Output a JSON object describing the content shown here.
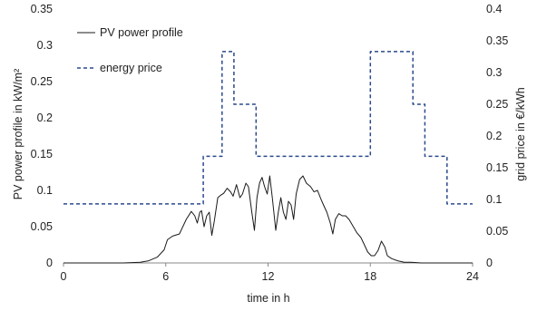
{
  "chart_data": {
    "type": "line",
    "xlabel": "time in h",
    "ylabel_left": "PV power profile in kW/m²",
    "ylabel_right": "grid price in €/kWh",
    "xlim": [
      0,
      24
    ],
    "ylim_left": [
      0,
      0.35
    ],
    "ylim_right": [
      0,
      0.4
    ],
    "x_ticks": [
      "0",
      "6",
      "12",
      "18",
      "24"
    ],
    "y_left_ticks": [
      "0",
      "0.05",
      "0.1",
      "0.15",
      "0.2",
      "0.25",
      "0.3",
      "0.35"
    ],
    "y_right_ticks": [
      "0",
      "0.05",
      "0.1",
      "0.15",
      "0.2",
      "0.25",
      "0.3",
      "0.35",
      "0.4"
    ],
    "grid": false,
    "legend_position": "top-left",
    "colors": {
      "pv": "#1a1a1a",
      "price": "#2b4a8c",
      "axis": "#888888"
    },
    "series": [
      {
        "name": "PV power profile",
        "axis": "left",
        "style": "solid",
        "x": [
          0,
          3.5,
          4.5,
          5,
          5.5,
          5.9,
          6.1,
          6.4,
          6.8,
          7.2,
          7.5,
          7.7,
          7.85,
          8.0,
          8.1,
          8.25,
          8.4,
          8.55,
          8.7,
          8.85,
          9.05,
          9.2,
          9.4,
          9.6,
          9.8,
          9.95,
          10.15,
          10.35,
          10.5,
          10.7,
          10.85,
          11.05,
          11.2,
          11.35,
          11.5,
          11.65,
          11.8,
          11.95,
          12.1,
          12.25,
          12.45,
          12.6,
          12.75,
          12.9,
          13.05,
          13.2,
          13.35,
          13.5,
          13.65,
          13.85,
          14.05,
          14.25,
          14.5,
          14.7,
          14.9,
          15.1,
          15.25,
          15.45,
          15.65,
          15.8,
          15.95,
          16.15,
          16.35,
          16.55,
          16.75,
          17.0,
          17.2,
          17.45,
          17.65,
          17.85,
          18.05,
          18.25,
          18.45,
          18.65,
          18.85,
          19.0,
          19.25,
          19.6,
          20.0,
          20.4,
          21.0,
          24
        ],
        "y": [
          0,
          0,
          0.001,
          0.003,
          0.008,
          0.018,
          0.032,
          0.037,
          0.04,
          0.06,
          0.071,
          0.065,
          0.055,
          0.07,
          0.072,
          0.05,
          0.065,
          0.07,
          0.038,
          0.058,
          0.09,
          0.093,
          0.096,
          0.103,
          0.098,
          0.092,
          0.108,
          0.09,
          0.095,
          0.11,
          0.105,
          0.07,
          0.045,
          0.09,
          0.11,
          0.118,
          0.105,
          0.095,
          0.12,
          0.09,
          0.045,
          0.07,
          0.09,
          0.07,
          0.06,
          0.085,
          0.08,
          0.06,
          0.095,
          0.115,
          0.12,
          0.11,
          0.105,
          0.098,
          0.1,
          0.088,
          0.08,
          0.07,
          0.055,
          0.04,
          0.06,
          0.068,
          0.065,
          0.065,
          0.06,
          0.05,
          0.042,
          0.035,
          0.025,
          0.015,
          0.01,
          0.01,
          0.017,
          0.03,
          0.022,
          0.01,
          0.006,
          0.003,
          0.001,
          0.001,
          0,
          0
        ]
      },
      {
        "name": "energy price",
        "axis": "right",
        "style": "dashed",
        "x": [
          0,
          8.2,
          8.2,
          8.7,
          8.7,
          9.3,
          9.3,
          10.0,
          10.0,
          10.7,
          10.7,
          11.3,
          11.3,
          18.0,
          18.0,
          19.8,
          19.8,
          20.5,
          20.5,
          21.2,
          21.2,
          21.8,
          21.8,
          22.5,
          22.5,
          24
        ],
        "y": [
          0.093,
          0.093,
          0.168,
          0.168,
          0.168,
          0.168,
          0.333,
          0.333,
          0.25,
          0.25,
          0.25,
          0.25,
          0.168,
          0.168,
          0.333,
          0.333,
          0.333,
          0.333,
          0.25,
          0.25,
          0.168,
          0.168,
          0.168,
          0.168,
          0.093,
          0.093
        ]
      }
    ]
  }
}
